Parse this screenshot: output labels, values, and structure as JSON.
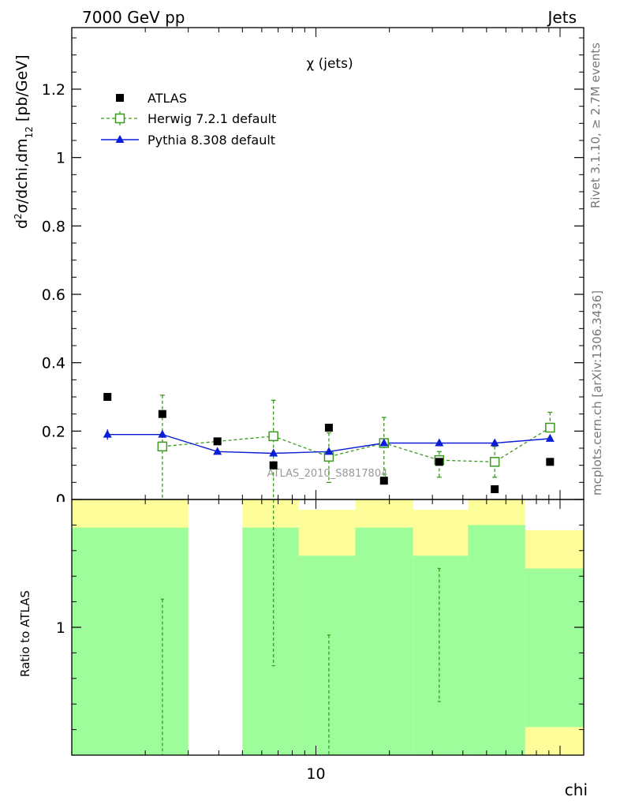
{
  "header": {
    "left": "7000 GeV pp",
    "right": "Jets"
  },
  "plot_title": "χ (jets)",
  "side_texts": {
    "rivet": "Rivet 3.1.10, ≥ 2.7M events",
    "mcplots": "mcplots.cern.ch [arXiv:1306.3436]"
  },
  "watermark": "ATLAS_2010_S8817804",
  "colors": {
    "data": "#000000",
    "herwig": "#3a9a1c",
    "pythia": "#0a1ed8",
    "band_outer": "#fdfd9a",
    "band_inner": "#9dfd9a"
  },
  "chart_data": [
    {
      "type": "scatter",
      "panel": "main",
      "ylabel": "d²σ/dchi,dm₁₂ [pb/GeV]",
      "xlabel": "",
      "ylim": [
        0,
        1.38
      ],
      "y_ticks": [
        "0",
        "0.2",
        "0.4",
        "0.6",
        "0.8",
        "1",
        "1.2"
      ],
      "x_scale": "log",
      "x_tick_label": "10",
      "legend": {
        "position": "top-left",
        "entries": [
          "ATLAS",
          "Herwig 7.2.1 default",
          "Pythia 8.308 default"
        ]
      },
      "x": [
        1.4,
        2.35,
        3.95,
        6.7,
        11.3,
        19.0,
        32.0,
        54.0,
        91.0
      ],
      "series": [
        {
          "name": "ATLAS",
          "style": "markers-square",
          "values": [
            0.3,
            0.25,
            0.17,
            0.1,
            0.21,
            0.055,
            0.11,
            0.03,
            0.11
          ]
        },
        {
          "name": "Herwig 7.2.1 default",
          "style": "dashed-open-square",
          "values": [
            null,
            0.155,
            null,
            0.185,
            0.125,
            0.165,
            0.115,
            0.11,
            0.21
          ],
          "err_up": [
            null,
            0.15,
            null,
            0.105,
            0.07,
            0.075,
            0.025,
            0.045,
            0.045
          ],
          "err_down": [
            null,
            0.155,
            null,
            0.185,
            0.075,
            0.12,
            0.05,
            0.045,
            0.03
          ]
        },
        {
          "name": "Pythia 8.308 default",
          "style": "solid-triangle",
          "values": [
            0.19,
            0.19,
            0.14,
            0.135,
            0.14,
            0.165,
            0.165,
            0.165,
            0.178
          ],
          "err_up": [
            0.015,
            0.01,
            0.008,
            0.005,
            0.005,
            0.005,
            0.005,
            0.005,
            0.006
          ],
          "err_down": [
            0.015,
            0.01,
            0.008,
            0.005,
            0.005,
            0.005,
            0.005,
            0.005,
            0.006
          ]
        }
      ]
    },
    {
      "type": "area",
      "panel": "ratio",
      "ylabel": "Ratio to ATLAS",
      "xlabel": "chi",
      "x_scale": "log",
      "x_tick_label": "10",
      "ylim": [
        0.5,
        1.5
      ],
      "y_ticks": [
        "1"
      ],
      "bins": [
        {
          "x_lo": 1.0,
          "x_hi": 3.0,
          "inner_hi": 1.39,
          "outer_hi": 1.5
        },
        {
          "x_lo": 3.0,
          "x_hi": 5.0,
          "inner_hi": null,
          "outer_hi": null
        },
        {
          "x_lo": 5.0,
          "x_hi": 8.5,
          "inner_hi": 1.39,
          "outer_hi": 1.5
        },
        {
          "x_lo": 8.5,
          "x_hi": 14.5,
          "inner_hi": 1.28,
          "outer_hi": 1.46
        },
        {
          "x_lo": 14.5,
          "x_hi": 25.0,
          "inner_hi": 1.39,
          "outer_hi": 1.5
        },
        {
          "x_lo": 25.0,
          "x_hi": 42.0,
          "inner_hi": 1.28,
          "outer_hi": 1.46
        },
        {
          "x_lo": 42.0,
          "x_hi": 72.0,
          "inner_hi": 1.4,
          "outer_hi": 1.5
        },
        {
          "x_lo": 72.0,
          "x_hi": 125.0,
          "inner_hi": 1.23,
          "outer_hi": 1.38,
          "inner_lo": 0.61
        }
      ],
      "herwig_ratio_errors": [
        {
          "x": 2.35,
          "lo": 0.5,
          "hi": 1.11
        },
        {
          "x": 6.7,
          "lo": 0.85,
          "hi": 1.5
        },
        {
          "x": 11.3,
          "lo": 0.5,
          "hi": 0.97
        },
        {
          "x": 32.0,
          "lo": 0.71,
          "hi": 1.23
        }
      ]
    }
  ]
}
